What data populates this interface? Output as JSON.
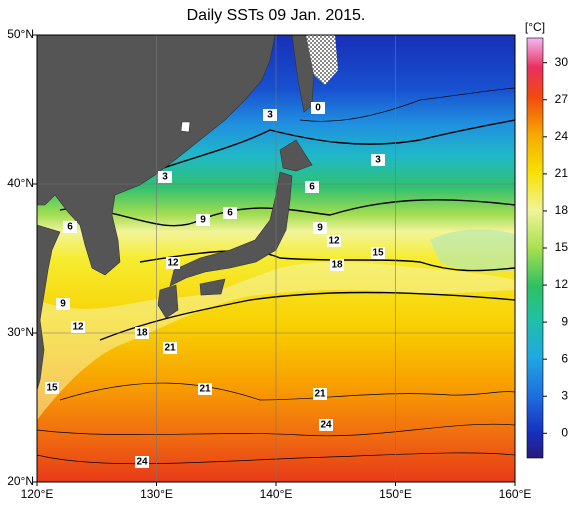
{
  "map": {
    "title": "Daily SSTs 09 Jan. 2015.",
    "lonlim": [
      120,
      160
    ],
    "latlim": [
      20,
      50
    ],
    "lon_ticks": [
      {
        "value": 120,
        "label": "120°E"
      },
      {
        "value": 130,
        "label": "130°E"
      },
      {
        "value": 140,
        "label": "140°E"
      },
      {
        "value": 150,
        "label": "150°E"
      },
      {
        "value": 160,
        "label": "160°E"
      }
    ],
    "lat_ticks": [
      {
        "value": 20,
        "label": "20°N"
      },
      {
        "value": 30,
        "label": "30°N"
      },
      {
        "value": 40,
        "label": "40°N"
      },
      {
        "value": 50,
        "label": "50°N"
      }
    ],
    "colorbar": {
      "unit": "[°C]",
      "lim": [
        -2,
        32
      ],
      "ticks": [
        0,
        3,
        6,
        9,
        12,
        15,
        18,
        21,
        24,
        27,
        30
      ]
    },
    "contour_labels": [
      "3",
      "0",
      "3",
      "3",
      "6",
      "6",
      "9",
      "6",
      "9",
      "12",
      "15",
      "18",
      "12",
      "9",
      "12",
      "18",
      "21",
      "15",
      "21",
      "21",
      "24",
      "24"
    ]
  }
}
